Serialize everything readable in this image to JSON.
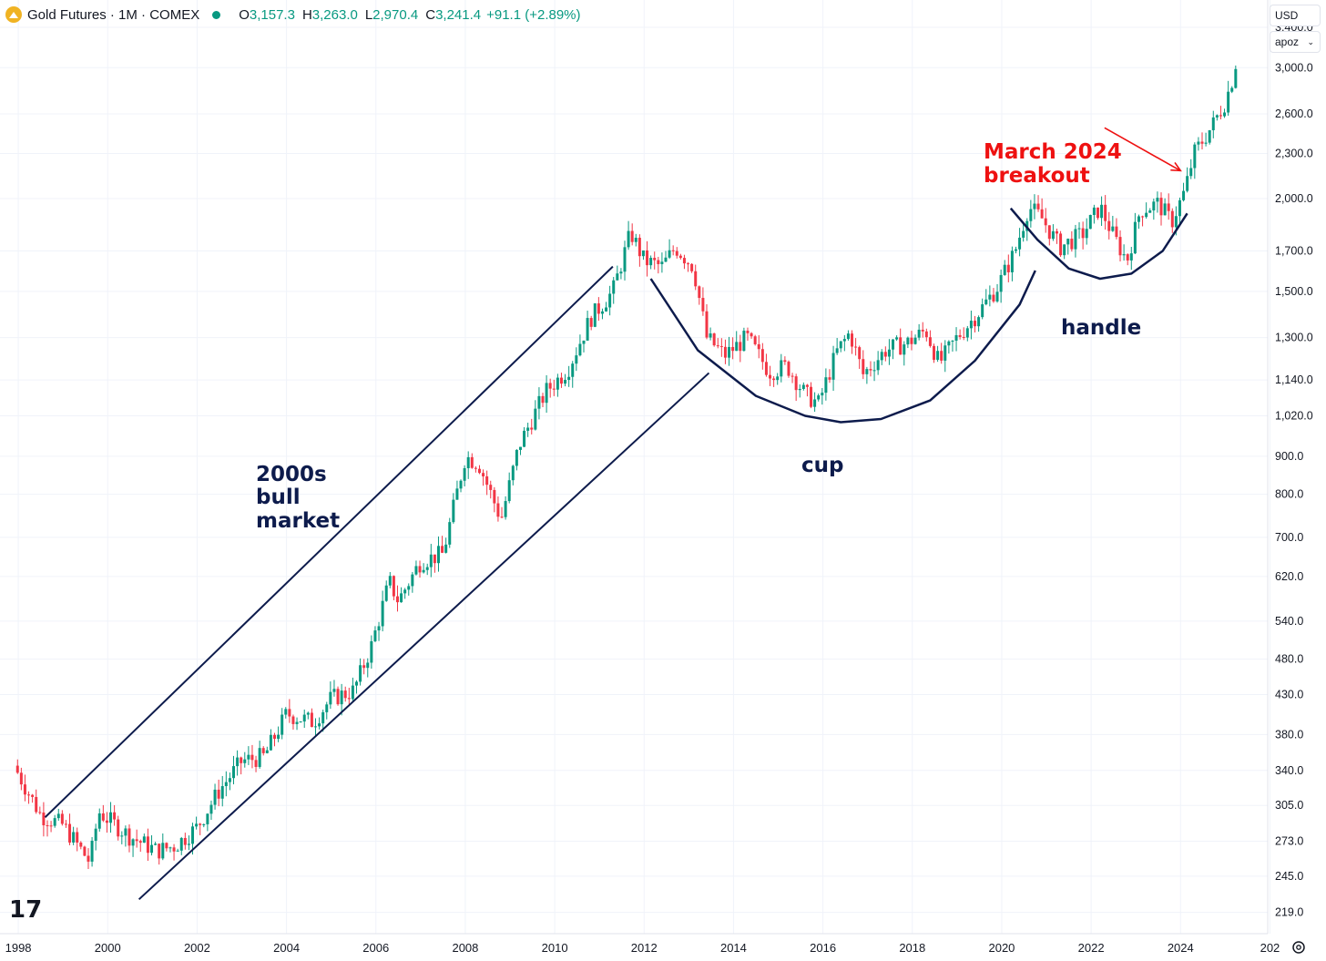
{
  "header": {
    "symbol": "Gold Futures · 1M · COMEX",
    "open_label": "O",
    "open": "3,157.3",
    "high_label": "H",
    "high": "3,263.0",
    "low_label": "L",
    "low": "2,970.4",
    "close_label": "C",
    "close": "3,241.4",
    "change": "+91.1 (+2.89%)"
  },
  "controls": {
    "currency": "USD",
    "unit": "apoz"
  },
  "colors": {
    "up": "#089981",
    "down": "#f23645",
    "annotation": "#0d1b4c",
    "highlight": "#ee1111",
    "grid": "#f0f3fa"
  },
  "chart_data": {
    "type": "candlestick",
    "interval": "1M",
    "scale": "log",
    "ylim": [
      205,
      3700
    ],
    "y_ticks": [
      "3,400.0",
      "3,000.0",
      "2,600.0",
      "2,300.0",
      "2,000.0",
      "1,700.0",
      "1,500.0",
      "1,300.0",
      "1,140.0",
      "1,020.0",
      "900.0",
      "800.0",
      "700.0",
      "620.0",
      "540.0",
      "480.0",
      "430.0",
      "380.0",
      "340.0",
      "305.0",
      "273.0",
      "245.0",
      "219.0"
    ],
    "x_ticks": [
      "1998",
      "2000",
      "2002",
      "2004",
      "2006",
      "2008",
      "2010",
      "2012",
      "2014",
      "2016",
      "2018",
      "2020",
      "2022",
      "2024",
      "202"
    ],
    "close_path": [
      [
        1997.9,
        345
      ],
      [
        1998.5,
        296
      ],
      [
        1999.0,
        287
      ],
      [
        1999.6,
        256
      ],
      [
        1999.8,
        299
      ],
      [
        2000.5,
        277
      ],
      [
        2001.1,
        265
      ],
      [
        2001.5,
        269
      ],
      [
        2002.0,
        285
      ],
      [
        2002.5,
        320
      ],
      [
        2003.0,
        350
      ],
      [
        2003.5,
        355
      ],
      [
        2004.0,
        405
      ],
      [
        2004.6,
        395
      ],
      [
        2005.0,
        425
      ],
      [
        2005.5,
        435
      ],
      [
        2005.9,
        500
      ],
      [
        2006.3,
        610
      ],
      [
        2006.5,
        575
      ],
      [
        2007.0,
        650
      ],
      [
        2007.5,
        665
      ],
      [
        2008.0,
        900
      ],
      [
        2008.3,
        880
      ],
      [
        2008.8,
        740
      ],
      [
        2009.2,
        930
      ],
      [
        2009.8,
        1100
      ],
      [
        2010.3,
        1180
      ],
      [
        2010.8,
        1380
      ],
      [
        2011.3,
        1500
      ],
      [
        2011.7,
        1800
      ],
      [
        2012.0,
        1650
      ],
      [
        2012.4,
        1620
      ],
      [
        2012.7,
        1720
      ],
      [
        2013.1,
        1620
      ],
      [
        2013.4,
        1300
      ],
      [
        2013.8,
        1230
      ],
      [
        2014.3,
        1300
      ],
      [
        2014.8,
        1170
      ],
      [
        2015.2,
        1190
      ],
      [
        2015.6,
        1090
      ],
      [
        2015.9,
        1060
      ],
      [
        2016.3,
        1240
      ],
      [
        2016.6,
        1320
      ],
      [
        2016.9,
        1160
      ],
      [
        2017.4,
        1250
      ],
      [
        2017.9,
        1280
      ],
      [
        2018.3,
        1330
      ],
      [
        2018.6,
        1200
      ],
      [
        2019.0,
        1300
      ],
      [
        2019.5,
        1410
      ],
      [
        2019.9,
        1520
      ],
      [
        2020.3,
        1700
      ],
      [
        2020.6,
        1950
      ],
      [
        2020.9,
        1880
      ],
      [
        2021.3,
        1720
      ],
      [
        2021.8,
        1790
      ],
      [
        2022.2,
        1950
      ],
      [
        2022.5,
        1780
      ],
      [
        2022.8,
        1650
      ],
      [
        2023.1,
        1930
      ],
      [
        2023.5,
        1970
      ],
      [
        2023.8,
        1860
      ],
      [
        2024.1,
        2050
      ],
      [
        2024.3,
        2300
      ],
      [
        2024.7,
        2500
      ],
      [
        2025.0,
        2700
      ],
      [
        2025.2,
        2950
      ],
      [
        2025.3,
        3241
      ]
    ]
  },
  "annotations": {
    "bull_market": [
      "2000s",
      "bull",
      "market"
    ],
    "cup": "cup",
    "handle": "handle",
    "breakout": [
      "March 2024",
      "breakout"
    ]
  },
  "logo_text": "17"
}
